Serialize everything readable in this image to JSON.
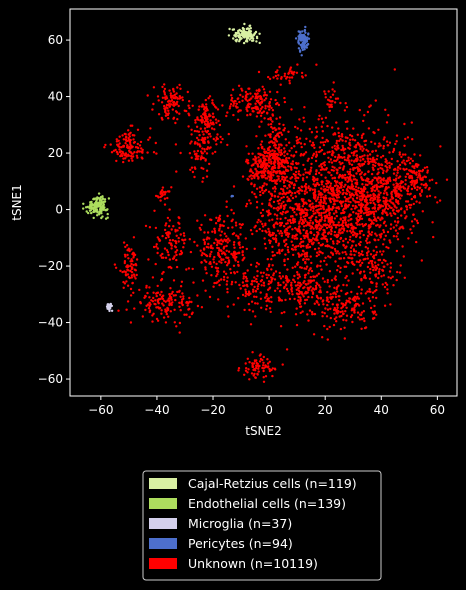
{
  "chart_data": {
    "type": "scatter",
    "title": "",
    "xlabel": "tSNE2",
    "ylabel": "tSNE1",
    "xlim": [
      -71,
      67
    ],
    "ylim": [
      -66,
      71
    ],
    "xticks": [
      -60,
      -40,
      -20,
      0,
      20,
      40,
      60
    ],
    "yticks": [
      -60,
      -40,
      -20,
      0,
      20,
      40,
      60
    ],
    "grid": false,
    "background": "#000000",
    "legend_position": "below plot",
    "series": [
      {
        "name": "Cajal-Retzius cells (n=119)",
        "color": "#d9f0a3",
        "count": 119,
        "clusters": [
          {
            "cx": -8.5,
            "cy": 62,
            "sx": 2.2,
            "sy": 1.2,
            "weight": 1
          }
        ]
      },
      {
        "name": "Endothelial cells (n=139)",
        "color": "#addd5e",
        "count": 139,
        "clusters": [
          {
            "cx": -61,
            "cy": 1.5,
            "sx": 1.8,
            "sy": 1.6,
            "weight": 1
          }
        ]
      },
      {
        "name": "Microglia (n=37)",
        "color": "#d4d0ec",
        "count": 37,
        "clusters": [
          {
            "cx": -57,
            "cy": -34.5,
            "sx": 0.5,
            "sy": 0.5,
            "weight": 1
          }
        ]
      },
      {
        "name": "Pericytes (n=94)",
        "color": "#4d6fcc",
        "count": 94,
        "clusters": [
          {
            "cx": 12,
            "cy": 60,
            "sx": 0.9,
            "sy": 2.0,
            "weight": 0.97
          },
          {
            "cx": -13,
            "cy": 5,
            "sx": 0.3,
            "sy": 0.3,
            "weight": 0.03
          }
        ]
      },
      {
        "name": "Unknown (n=10119)",
        "color": "#ff0000",
        "count": 10119,
        "clusters": [
          {
            "cx": 25,
            "cy": 5,
            "sx": 12,
            "sy": 13,
            "weight": 30
          },
          {
            "cx": 42,
            "cy": 5,
            "sx": 6,
            "sy": 8,
            "weight": 6
          },
          {
            "cx": 52,
            "cy": 12,
            "sx": 3,
            "sy": 3,
            "weight": 2
          },
          {
            "cx": 0,
            "cy": 15,
            "sx": 4,
            "sy": 4,
            "weight": 5
          },
          {
            "cx": 2,
            "cy": 20,
            "sx": 3,
            "sy": 8,
            "weight": 3
          },
          {
            "cx": -5,
            "cy": 38,
            "sx": 5,
            "sy": 3,
            "weight": 3
          },
          {
            "cx": 6,
            "cy": 48,
            "sx": 3,
            "sy": 1.5,
            "weight": 0.8
          },
          {
            "cx": 22,
            "cy": 38,
            "sx": 1.5,
            "sy": 2.5,
            "weight": 0.5
          },
          {
            "cx": -22,
            "cy": 32,
            "sx": 3,
            "sy": 4,
            "weight": 2
          },
          {
            "cx": -24,
            "cy": 22,
            "sx": 3,
            "sy": 5,
            "weight": 2
          },
          {
            "cx": -35,
            "cy": 38,
            "sx": 3,
            "sy": 3,
            "weight": 2
          },
          {
            "cx": -50,
            "cy": 22,
            "sx": 4,
            "sy": 3,
            "weight": 2.5
          },
          {
            "cx": -38,
            "cy": 5,
            "sx": 1.5,
            "sy": 1.5,
            "weight": 0.5
          },
          {
            "cx": -17,
            "cy": -15,
            "sx": 5,
            "sy": 6,
            "weight": 5
          },
          {
            "cx": -35,
            "cy": -12,
            "sx": 3,
            "sy": 5,
            "weight": 2
          },
          {
            "cx": -50,
            "cy": -20,
            "sx": 2,
            "sy": 4,
            "weight": 1.5
          },
          {
            "cx": -37,
            "cy": -33,
            "sx": 5,
            "sy": 3,
            "weight": 3
          },
          {
            "cx": -5,
            "cy": -28,
            "sx": 4,
            "sy": 4,
            "weight": 2
          },
          {
            "cx": 12,
            "cy": -28,
            "sx": 6,
            "sy": 5,
            "weight": 4
          },
          {
            "cx": 28,
            "cy": -35,
            "sx": 5,
            "sy": 4,
            "weight": 3
          },
          {
            "cx": 38,
            "cy": -22,
            "sx": 5,
            "sy": 4,
            "weight": 2
          },
          {
            "cx": -4,
            "cy": -56,
            "sx": 3,
            "sy": 2,
            "weight": 1.5
          },
          {
            "cx": 10,
            "cy": -8,
            "sx": 8,
            "sy": 6,
            "weight": 6
          }
        ]
      }
    ]
  }
}
